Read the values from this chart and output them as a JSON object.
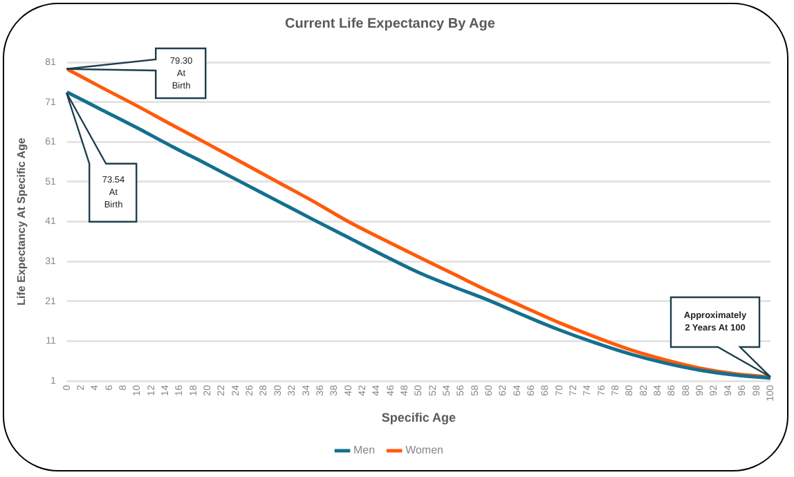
{
  "chart_data": {
    "type": "line",
    "title": "Current Life Expectancy By Age",
    "xlabel": "Specific Age",
    "ylabel": "Life Expectancy At Specific Age",
    "x": [
      0,
      5,
      10,
      15,
      20,
      25,
      30,
      35,
      40,
      45,
      50,
      55,
      60,
      65,
      70,
      75,
      80,
      85,
      90,
      95,
      100
    ],
    "series": [
      {
        "name": "Men",
        "color": "#156f8f",
        "values": [
          73.5,
          69.0,
          64.5,
          59.8,
          55.3,
          50.7,
          46.1,
          41.5,
          37.0,
          32.5,
          28.2,
          24.6,
          21.2,
          17.4,
          13.8,
          10.6,
          7.8,
          5.5,
          3.7,
          2.5,
          1.7
        ]
      },
      {
        "name": "Women",
        "color": "#ff5a0a",
        "values": [
          79.3,
          74.6,
          70.0,
          65.2,
          60.5,
          55.7,
          50.9,
          46.1,
          41.0,
          36.5,
          32.1,
          27.8,
          23.5,
          19.5,
          15.6,
          12.1,
          8.9,
          6.3,
          4.2,
          2.8,
          2.0
        ]
      }
    ],
    "xlim": [
      0,
      100
    ],
    "xticks": [
      0,
      2,
      4,
      6,
      8,
      10,
      12,
      14,
      16,
      18,
      20,
      22,
      24,
      26,
      28,
      30,
      32,
      34,
      36,
      38,
      40,
      42,
      44,
      46,
      48,
      50,
      52,
      54,
      56,
      58,
      60,
      62,
      64,
      66,
      68,
      70,
      72,
      74,
      76,
      78,
      80,
      82,
      84,
      86,
      88,
      90,
      92,
      94,
      96,
      98,
      100
    ],
    "ylim": [
      1,
      81
    ],
    "yticks": [
      1,
      11,
      21,
      31,
      41,
      51,
      61,
      71,
      81
    ],
    "grid": "y",
    "legend": "bottom",
    "marker": "none",
    "line_style": "solid",
    "annotations": [
      "79.30\nAt\nBirth",
      "73.54\nAt\nBirth",
      "Approximately\n2 Years At 100"
    ]
  }
}
